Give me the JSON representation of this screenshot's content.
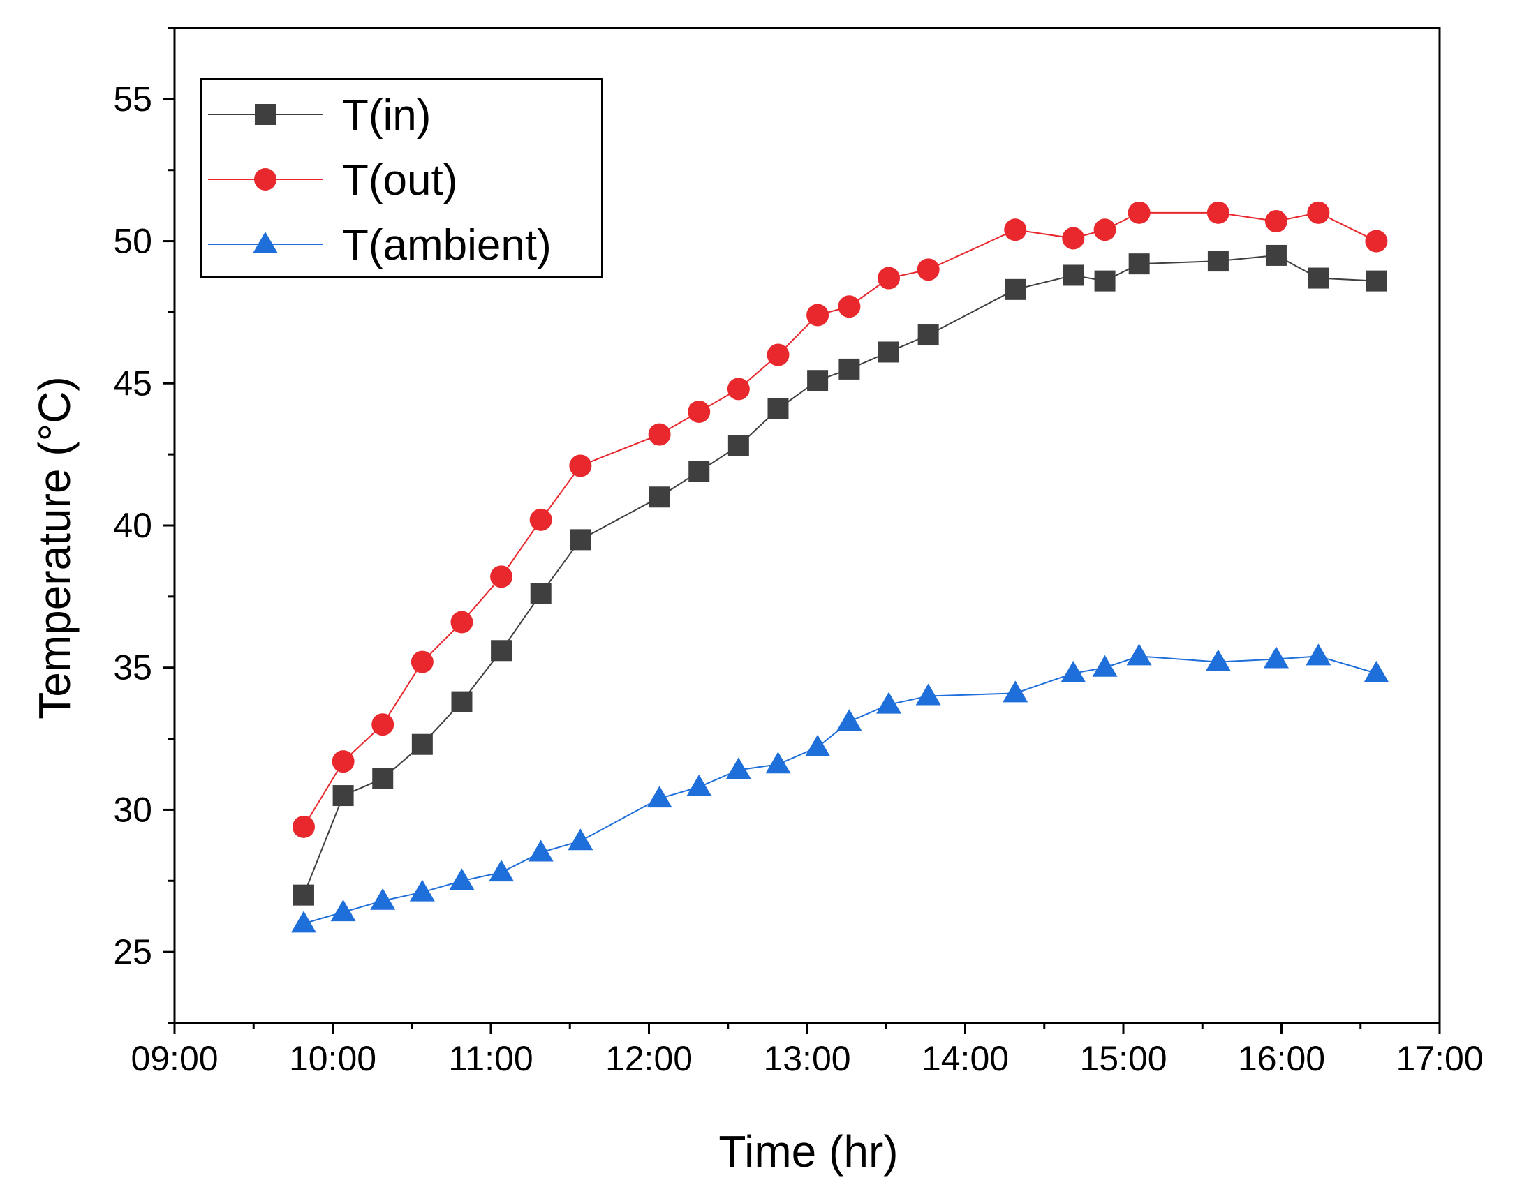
{
  "chart_data": {
    "type": "line",
    "title": "",
    "xlabel": "Time (hr)",
    "ylabel": "Temperature (°C)",
    "xlim": [
      "09:00",
      "17:00"
    ],
    "ylim": [
      22.5,
      57.5
    ],
    "x_ticks": [
      "09:00",
      "10:00",
      "11:00",
      "12:00",
      "13:00",
      "14:00",
      "15:00",
      "16:00",
      "17:00"
    ],
    "y_ticks": [
      25,
      30,
      35,
      40,
      45,
      50,
      55
    ],
    "grid": false,
    "legend_position": "top-left",
    "x": [
      "09:49",
      "10:04",
      "10:19",
      "10:34",
      "10:49",
      "11:04",
      "11:19",
      "11:34",
      "12:04",
      "12:19",
      "12:34",
      "12:49",
      "13:04",
      "13:16",
      "13:31",
      "13:46",
      "14:19",
      "14:41",
      "14:53",
      "15:06",
      "15:36",
      "15:58",
      "16:14",
      "16:36"
    ],
    "series": [
      {
        "name": "T(in)",
        "color": "#3f3f3f",
        "marker": "square",
        "values": [
          27.0,
          30.5,
          31.1,
          32.3,
          33.8,
          35.6,
          37.6,
          39.5,
          41.0,
          41.9,
          42.8,
          44.1,
          45.1,
          45.5,
          46.1,
          46.7,
          48.3,
          48.8,
          48.6,
          49.2,
          49.3,
          49.5,
          48.7,
          48.6
        ]
      },
      {
        "name": "T(out)",
        "color": "#e8282d",
        "marker": "circle",
        "values": [
          29.4,
          31.7,
          33.0,
          35.2,
          36.6,
          38.2,
          40.2,
          42.1,
          43.2,
          44.0,
          44.8,
          46.0,
          47.4,
          47.7,
          48.7,
          49.0,
          50.4,
          50.1,
          50.4,
          51.0,
          51.0,
          50.7,
          51.0,
          50.0
        ]
      },
      {
        "name": "T(ambient)",
        "color": "#1f6fdb",
        "marker": "triangle",
        "values": [
          26.0,
          26.4,
          26.8,
          27.1,
          27.5,
          27.8,
          28.5,
          28.9,
          30.4,
          30.8,
          31.4,
          31.6,
          32.2,
          33.1,
          33.7,
          34.0,
          34.1,
          34.8,
          35.0,
          35.4,
          35.2,
          35.3,
          35.4,
          34.8
        ]
      }
    ]
  }
}
